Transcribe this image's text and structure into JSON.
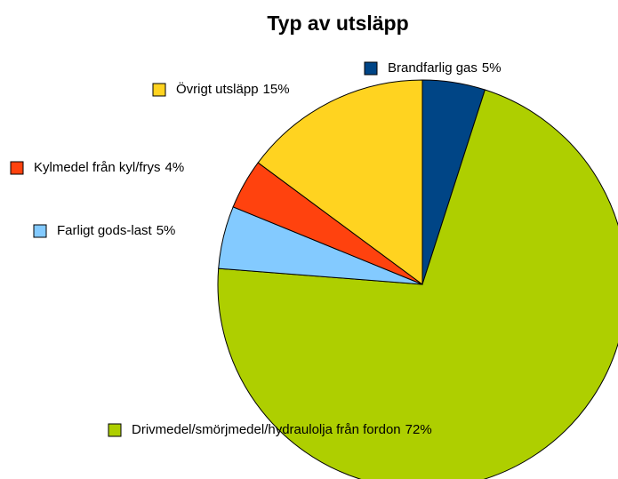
{
  "chart_data": {
    "type": "pie",
    "title": "Typ av utsläpp",
    "categories": [
      "Brandfarlig gas",
      "Drivmedel/smörjmedel/hydraulolja från fordon",
      "Farligt gods-last",
      "Kylmedel från kyl/frys",
      "Övrigt utsläpp"
    ],
    "values": [
      5,
      72,
      5,
      4,
      15
    ],
    "value_labels": [
      "5%",
      "72%",
      "5%",
      "4%",
      "15%"
    ],
    "colors": [
      "#004586",
      "#aecf00",
      "#83caff",
      "#ff420e",
      "#ffd320"
    ]
  }
}
